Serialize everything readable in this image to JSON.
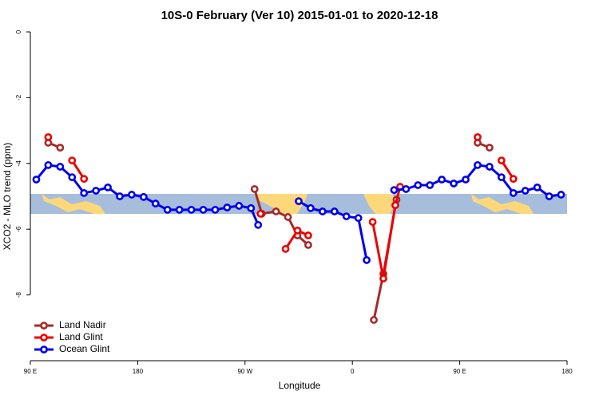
{
  "chart_data": {
    "type": "line",
    "title": "10S-0 February (Ver 10)   2015-01-01 to 2020-12-18",
    "x_label": "Longitude",
    "y_label": "XCO2 - MLO trend (ppm)",
    "xlim": [
      90,
      540
    ],
    "xticks": [
      {
        "value": 90,
        "label": "90 E"
      },
      180,
      {
        "value": 270,
        "label": "90 W"
      },
      {
        "value": 360,
        "label": "0"
      },
      {
        "value": 450,
        "label": "90 E"
      },
      {
        "value": 540,
        "label": "180"
      }
    ],
    "ylim": [
      -10,
      0
    ],
    "yticks": [
      0,
      -2,
      -4,
      -6,
      -8
    ],
    "legend": "bottomleft",
    "series": [
      {
        "name": "Land Nadir",
        "color": "#a52a2a",
        "x": [
          105,
          115,
          null,
          278,
          284,
          296,
          306,
          314,
          323,
          null,
          378,
          386,
          397,
          null,
          465,
          475
        ],
        "values": [
          -3.37,
          -3.52,
          null,
          -4.78,
          -5.53,
          -5.46,
          -5.63,
          -6.19,
          -6.48,
          null,
          -8.76,
          -7.36,
          -5.1,
          null,
          -3.37,
          -3.52
        ]
      },
      {
        "name": "Land Glint",
        "color": "#ee0000",
        "x": [
          105,
          null,
          125,
          135,
          null,
          283,
          null,
          304,
          314,
          323,
          null,
          377,
          386,
          396,
          400,
          null,
          465,
          null,
          485,
          495
        ],
        "values": [
          -3.2,
          null,
          -3.91,
          -4.47,
          null,
          -5.53,
          null,
          -6.6,
          -6.04,
          -6.19,
          null,
          -5.78,
          -7.5,
          -5.27,
          -4.71,
          null,
          -3.2,
          null,
          -3.91,
          -4.47
        ]
      },
      {
        "name": "Ocean Glint",
        "color": "#0000ee",
        "x": [
          95,
          105,
          115,
          125,
          135,
          145,
          155,
          165,
          175,
          185,
          195,
          205,
          215,
          225,
          235,
          245,
          255,
          265,
          275,
          281,
          null,
          315,
          325,
          335,
          345,
          355,
          365,
          372,
          null,
          395,
          405,
          415,
          425,
          435,
          445,
          455,
          465,
          475,
          485,
          495,
          505,
          515,
          525,
          535
        ],
        "values": [
          -4.49,
          -4.05,
          -4.1,
          -4.42,
          -4.9,
          -4.83,
          -4.73,
          -5.0,
          -4.95,
          -5.02,
          -5.22,
          -5.41,
          -5.41,
          -5.41,
          -5.41,
          -5.41,
          -5.34,
          -5.29,
          -5.36,
          -5.87,
          null,
          -5.15,
          -5.36,
          -5.46,
          -5.46,
          -5.61,
          -5.66,
          -6.94,
          null,
          -4.81,
          -4.78,
          -4.66,
          -4.66,
          -4.49,
          -4.61,
          -4.49,
          -4.05,
          -4.1,
          -4.42,
          -4.9,
          -4.83,
          -4.73,
          -5.0,
          -4.95
        ]
      }
    ]
  }
}
